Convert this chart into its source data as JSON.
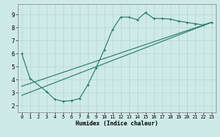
{
  "xlabel": "Humidex (Indice chaleur)",
  "bg_color": "#ceeae8",
  "grid_color": "#b8d8d6",
  "line_color": "#2a7d6e",
  "xlim": [
    -0.5,
    23.5
  ],
  "ylim": [
    1.5,
    9.8
  ],
  "xticks": [
    0,
    1,
    2,
    3,
    4,
    5,
    6,
    7,
    8,
    9,
    10,
    11,
    12,
    13,
    14,
    15,
    16,
    17,
    18,
    19,
    20,
    21,
    22,
    23
  ],
  "yticks": [
    2,
    3,
    4,
    5,
    6,
    7,
    8,
    9
  ],
  "curve1_x": [
    0,
    1,
    3,
    4,
    5,
    6,
    7,
    8,
    9,
    10,
    11,
    12,
    13,
    14,
    15,
    16,
    17,
    18,
    19,
    20,
    21,
    22,
    23
  ],
  "curve1_y": [
    6.0,
    4.1,
    3.1,
    2.5,
    2.35,
    2.4,
    2.55,
    3.6,
    4.9,
    6.3,
    7.85,
    8.8,
    8.8,
    8.6,
    9.15,
    8.7,
    8.7,
    8.65,
    8.5,
    8.4,
    8.3,
    8.2,
    8.4
  ],
  "curve2_x": [
    0,
    23
  ],
  "curve2_y": [
    3.5,
    8.4
  ],
  "curve3_x": [
    0,
    23
  ],
  "curve3_y": [
    2.8,
    8.4
  ]
}
